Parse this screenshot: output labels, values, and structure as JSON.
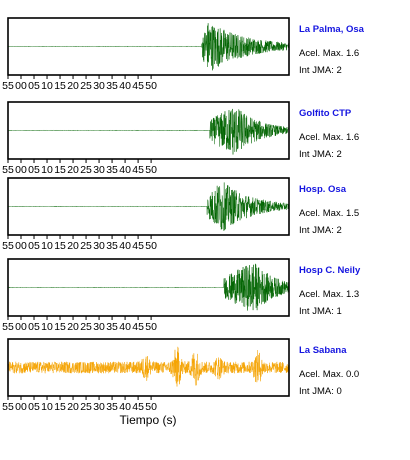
{
  "chart_data": {
    "type": "line",
    "xlabel": "Tiempo (s)",
    "x_tick_labels": [
      "55",
      "00",
      "05",
      "10",
      "15",
      "20",
      "25",
      "30",
      "35",
      "40",
      "45",
      "50"
    ],
    "x_range_seconds": [
      -55,
      53
    ],
    "panels": [
      {
        "station": "La Palma, Osa",
        "accel_label": "Acel. Max. 1.6",
        "jma_label": "Int JMA: 2",
        "accel_max": 1.6,
        "jma": 2,
        "color": "#006400",
        "onset": 19.5,
        "peak_time": 22,
        "peak_amp": 0.95,
        "decay": 14,
        "noise": 0.01
      },
      {
        "station": "Golfito CTP",
        "accel_label": "Acel. Max. 1.6",
        "jma_label": "Int JMA: 2",
        "accel_max": 1.6,
        "jma": 2,
        "color": "#006400",
        "onset": 22.5,
        "peak_time": 32,
        "peak_amp": 0.95,
        "decay": 9,
        "noise": 0.01
      },
      {
        "station": "Hosp. Osa",
        "accel_label": "Acel. Max. 1.5",
        "jma_label": "Int JMA: 2",
        "accel_max": 1.5,
        "jma": 2,
        "color": "#006400",
        "onset": 21.5,
        "peak_time": 27,
        "peak_amp": 0.95,
        "decay": 11,
        "noise": 0.01
      },
      {
        "station": "Hosp C. Neily",
        "accel_label": "Acel. Max. 1.3",
        "jma_label": "Int JMA: 1",
        "accel_max": 1.3,
        "jma": 1,
        "color": "#006400",
        "onset": 28,
        "peak_time": 39.5,
        "peak_amp": 0.95,
        "decay": 8,
        "noise": 0.01
      },
      {
        "station": "La Sabana",
        "accel_label": "Acel. Max. 0.0",
        "jma_label": "Int JMA: 0",
        "accel_max": 0.0,
        "jma": 0,
        "color": "#f5a300",
        "onset": -55,
        "peak_time": 10,
        "peak_amp": 0.6,
        "decay": 6,
        "noise": 0.22
      }
    ]
  }
}
